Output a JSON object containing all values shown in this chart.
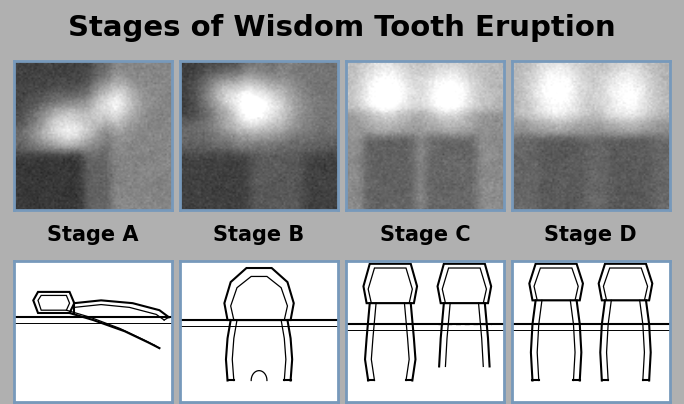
{
  "title": "Stages of Wisdom Tooth Eruption",
  "stages": [
    "Stage A",
    "Stage B",
    "Stage C",
    "Stage D"
  ],
  "bg_color": "#b0b0b0",
  "title_color": "#000000",
  "box_border_color": "#7799bb",
  "title_fontsize": 21,
  "stage_fontsize": 15,
  "fig_width": 6.84,
  "fig_height": 4.04,
  "dpi": 100
}
